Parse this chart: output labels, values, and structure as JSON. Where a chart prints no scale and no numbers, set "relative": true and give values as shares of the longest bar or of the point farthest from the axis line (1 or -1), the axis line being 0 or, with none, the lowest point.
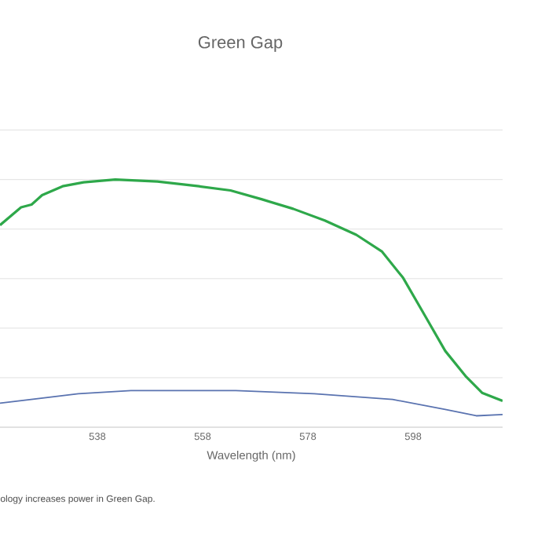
{
  "chart_data": {
    "type": "line",
    "title": "Green Gap",
    "xlabel": "Wavelength (nm)",
    "relative": true,
    "grid": "y",
    "marker": "none",
    "line_style": "solid",
    "xlim": [
      519.5,
      615
    ],
    "xticks": [
      538,
      558,
      578,
      598
    ],
    "annotations": [
      "ology increases power in Green Gap."
    ],
    "series": [
      {
        "color": "#2ea84a",
        "x": [
          519.5,
          523.5,
          525.5,
          527.5,
          531.4,
          535.4,
          541.4,
          549.4,
          557.3,
          563.3,
          569.3,
          575.2,
          581.2,
          587.2,
          592.1,
          596.1,
          600.1,
          604.1,
          608.1,
          611.1,
          615
        ],
        "values": [
          0.816,
          0.888,
          0.899,
          0.937,
          0.973,
          0.989,
          1.0,
          0.992,
          0.973,
          0.956,
          0.92,
          0.882,
          0.835,
          0.777,
          0.709,
          0.603,
          0.456,
          0.308,
          0.203,
          0.139,
          0.106
        ]
      },
      {
        "color": "#5a73b0",
        "x": [
          519.5,
          534.4,
          544.4,
          564.3,
          579.2,
          594.1,
          604.1,
          610.0,
          615
        ],
        "values": [
          0.097,
          0.135,
          0.148,
          0.148,
          0.135,
          0.112,
          0.072,
          0.046,
          0.051
        ]
      }
    ]
  }
}
